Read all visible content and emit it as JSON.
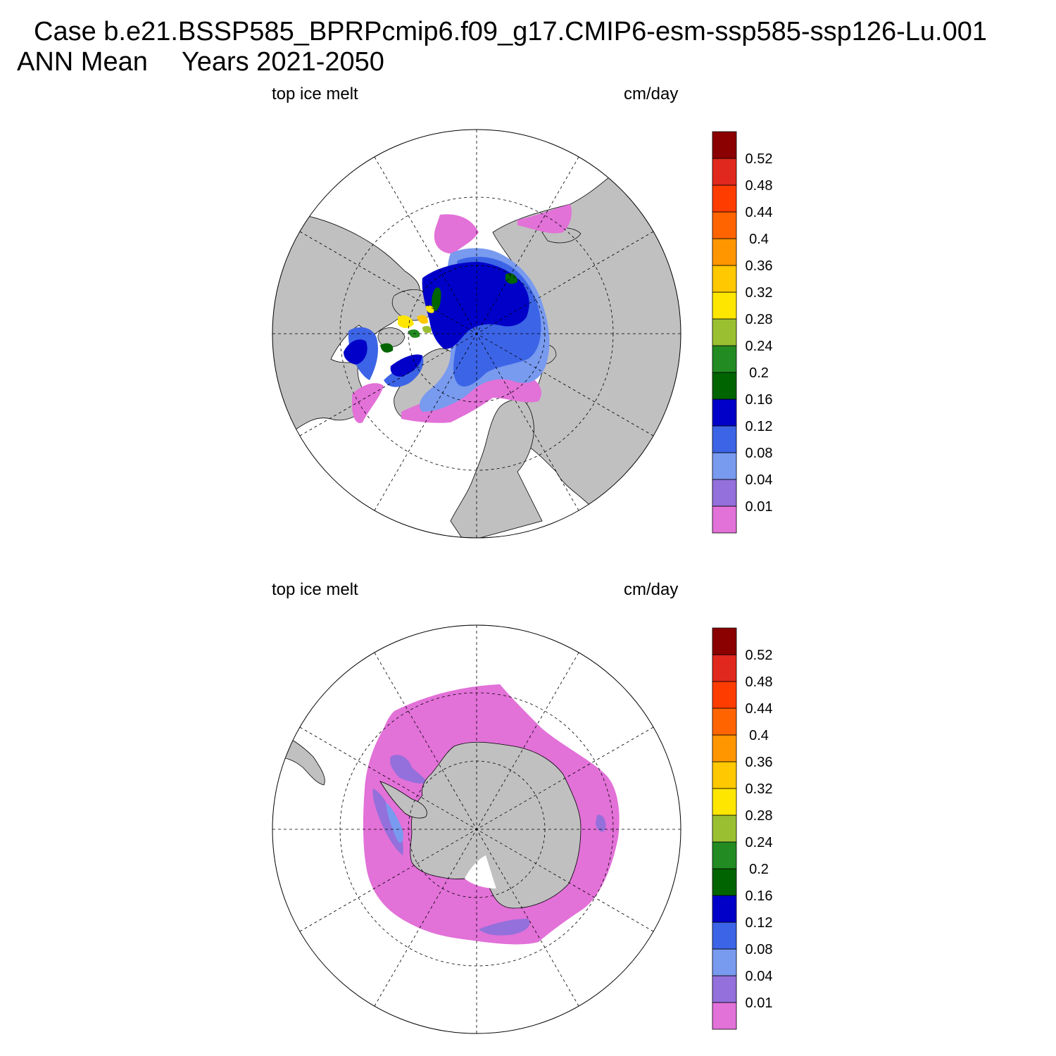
{
  "header": {
    "case_line": "Case b.e21.BSSP585_BPRPcmip6.f09_g17.CMIP6-esm-ssp585-ssp126-Lu.001",
    "period_label": "ANN Mean",
    "years_label": "Years 2021-2050"
  },
  "colors": {
    "land": "#c0c0c0",
    "ocean": "#ffffff",
    "colorbar": [
      "#e271d8",
      "#9370db",
      "#789aef",
      "#3c64e6",
      "#0000c8",
      "#006400",
      "#228b22",
      "#9ac031",
      "#ffe600",
      "#ffc800",
      "#ff9600",
      "#ff6400",
      "#ff3c00",
      "#e1281e",
      "#8b0000"
    ]
  },
  "panels": [
    {
      "id": "north",
      "hemisphere": "Northern Hemisphere polar stereographic",
      "variable_label": "top ice melt",
      "units_label": "cm/day",
      "colorbar_labels": [
        "0.01",
        "0.04",
        "0.08",
        "0.12",
        "0.16",
        "0.2",
        "0.24",
        "0.28",
        "0.32",
        "0.36",
        "0.4",
        "0.44",
        "0.48",
        "0.52"
      ]
    },
    {
      "id": "south",
      "hemisphere": "Southern Hemisphere polar stereographic",
      "variable_label": "top ice melt",
      "units_label": "cm/day",
      "colorbar_labels": [
        "0.01",
        "0.04",
        "0.08",
        "0.12",
        "0.16",
        "0.2",
        "0.24",
        "0.28",
        "0.32",
        "0.36",
        "0.4",
        "0.44",
        "0.48",
        "0.52"
      ]
    }
  ]
}
